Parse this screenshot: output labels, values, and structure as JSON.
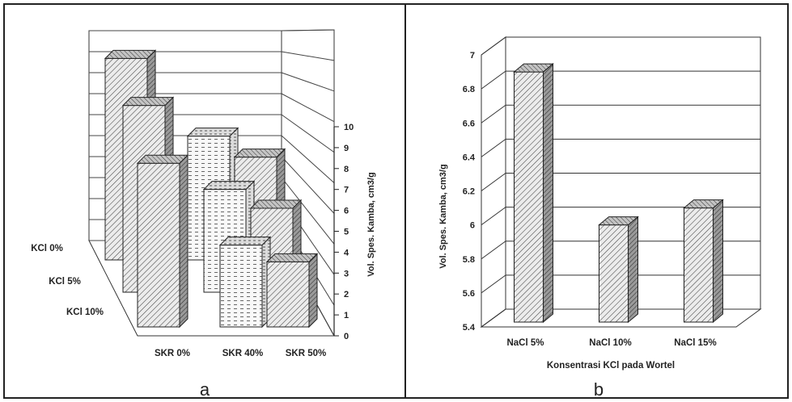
{
  "chart_data": [
    {
      "panel_label": "a",
      "type": "bar3d",
      "ylabel": "Vol. Spes. Kamba, cm3/g",
      "ylim": [
        0,
        10
      ],
      "yticks": [
        "0",
        "1",
        "2",
        "3",
        "4",
        "5",
        "6",
        "7",
        "8",
        "9",
        "10"
      ],
      "x_categories": [
        "SKR 0%",
        "SKR 40%",
        "SKR 50%"
      ],
      "depth_categories": [
        "KCl 0%",
        "KCl 5%",
        "KCl 10%"
      ],
      "values": [
        [
          9.6,
          5.9,
          4.9
        ],
        [
          8.9,
          4.9,
          4.0
        ],
        [
          7.8,
          3.9,
          3.1
        ]
      ],
      "grid": true
    },
    {
      "panel_label": "b",
      "type": "bar3d",
      "ylabel": "Vol. Spes. Kamba, cm3/g",
      "xlabel": "Konsentrasi KCl pada Wortel",
      "categories": [
        "NaCl 5%",
        "NaCl 10%",
        "NaCl 15%"
      ],
      "values": [
        6.9,
        6.0,
        6.1
      ],
      "ylim": [
        5.4,
        7.0
      ],
      "yticks": [
        "5.4",
        "5.6",
        "5.8",
        "6",
        "6.2",
        "6.4",
        "6.6",
        "6.8",
        "7"
      ],
      "grid": true
    }
  ],
  "colors": {
    "line": "#222222",
    "grid": "#333333",
    "face": "#e8e8e8",
    "side": "#9a9a9a",
    "top": "#bdbdbd",
    "light_face": "#f6f6f6"
  }
}
